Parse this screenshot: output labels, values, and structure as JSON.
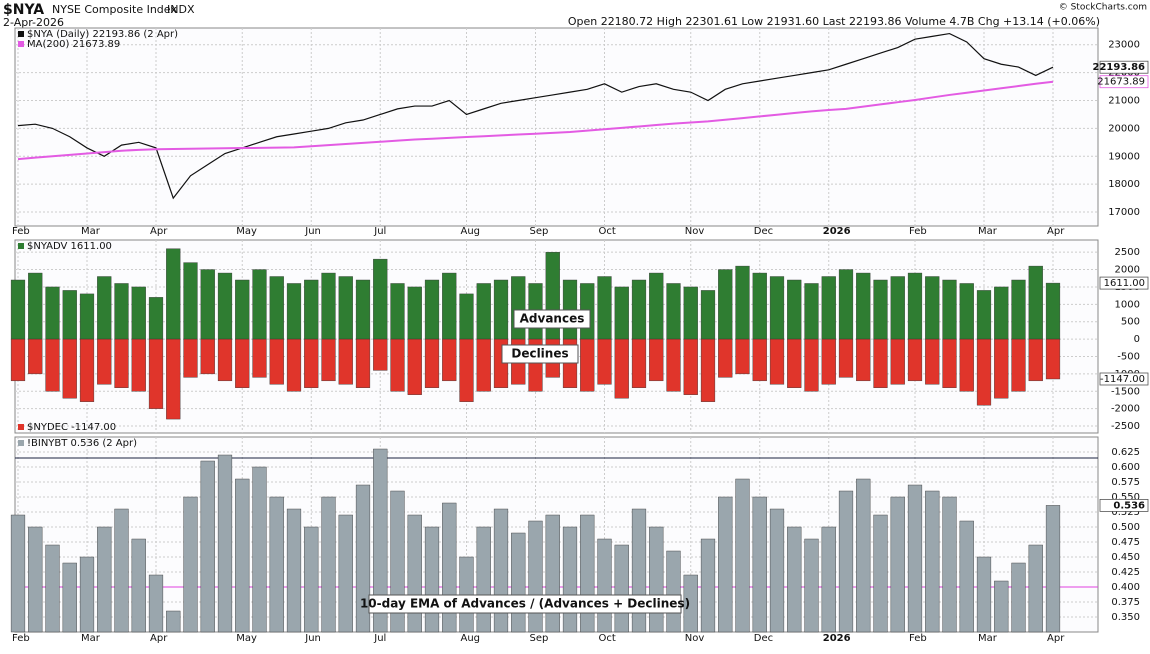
{
  "header": {
    "symbol": "$NYA",
    "name": "NYSE Composite Index",
    "exchange": "INDX",
    "date": "2-Apr-2026",
    "quote": "Open 22180.72  High 22301.61  Low 21931.60  Last 22193.86  Volume 4.7B  Chg +13.14 (+0.06%)",
    "credit": "© StockCharts.com"
  },
  "chart_data": {
    "type": "panels",
    "categories": [
      "Feb",
      null,
      null,
      null,
      "Mar",
      null,
      null,
      null,
      "Apr",
      null,
      null,
      null,
      null,
      "May",
      null,
      null,
      null,
      "Jun",
      null,
      null,
      null,
      "Jul",
      null,
      null,
      null,
      null,
      "Aug",
      null,
      null,
      null,
      "Sep",
      null,
      null,
      null,
      "Oct",
      null,
      null,
      null,
      null,
      "Nov",
      null,
      null,
      null,
      "Dec",
      null,
      null,
      null,
      "2026",
      null,
      null,
      null,
      null,
      "Feb",
      null,
      null,
      null,
      "Mar",
      null,
      null,
      null,
      "Apr"
    ],
    "panels": [
      {
        "type": "line",
        "ylim": [
          16500,
          23600
        ],
        "yticks": [
          17000,
          18000,
          19000,
          20000,
          21000,
          22000,
          23000
        ],
        "grid": true,
        "series": [
          {
            "name": "$NYA (Daily) 22193.86 (2 Apr)",
            "color": "#111111",
            "last_label": 22193.86,
            "values": [
              20100,
              20150,
              20000,
              19700,
              19300,
              19000,
              19400,
              19500,
              19300,
              17500,
              18300,
              18700,
              19100,
              19300,
              19500,
              19700,
              19800,
              19900,
              20000,
              20200,
              20300,
              20500,
              20700,
              20800,
              20800,
              21000,
              20500,
              20700,
              20900,
              21000,
              21100,
              21200,
              21300,
              21400,
              21600,
              21300,
              21500,
              21600,
              21400,
              21300,
              21000,
              21400,
              21600,
              21700,
              21800,
              21900,
              22000,
              22100,
              22300,
              22500,
              22700,
              22900,
              23200,
              23300,
              23400,
              23100,
              22500,
              22300,
              22200,
              21900,
              22193.86
            ]
          },
          {
            "name": "MA(200) 21673.89",
            "color": "#e35be3",
            "last_label": 21673.89,
            "values": [
              18900,
              18950,
              19000,
              19050,
              19100,
              19150,
              19200,
              19230,
              19250,
              19260,
              19270,
              19280,
              19290,
              19295,
              19300,
              19310,
              19320,
              19360,
              19400,
              19440,
              19480,
              19520,
              19560,
              19600,
              19630,
              19660,
              19690,
              19720,
              19750,
              19780,
              19810,
              19840,
              19870,
              19920,
              19970,
              20020,
              20070,
              20120,
              20170,
              20210,
              20250,
              20310,
              20370,
              20430,
              20490,
              20550,
              20610,
              20660,
              20700,
              20780,
              20860,
              20940,
              21020,
              21110,
              21200,
              21280,
              21360,
              21440,
              21520,
              21600,
              21673.89
            ]
          }
        ]
      },
      {
        "type": "bar",
        "ylim": [
          -2700,
          2850
        ],
        "yticks": [
          -2500,
          -2000,
          -1500,
          -1000,
          -500,
          0,
          500,
          1000,
          1500,
          2000,
          2500
        ],
        "grid": true,
        "annotations": [
          "Advances",
          "Declines"
        ],
        "series": [
          {
            "name": "$NYADV 1611.00",
            "color": "#2f7d32",
            "last_label": "1611.00",
            "values": [
              1700,
              1900,
              1500,
              1400,
              1300,
              1800,
              1600,
              1500,
              1200,
              2600,
              2200,
              2000,
              1900,
              1700,
              2000,
              1800,
              1600,
              1700,
              1900,
              1800,
              1700,
              2300,
              1600,
              1500,
              1700,
              1900,
              1300,
              1600,
              1700,
              1800,
              1600,
              2500,
              1700,
              1600,
              1800,
              1500,
              1700,
              1900,
              1600,
              1500,
              1400,
              2000,
              2100,
              1900,
              1800,
              1700,
              1600,
              1800,
              2000,
              1900,
              1700,
              1800,
              1900,
              1800,
              1700,
              1600,
              1400,
              1500,
              1700,
              2100,
              1611
            ]
          },
          {
            "name": "$NYDEC -1147.00",
            "color": "#e0352b",
            "last_label": "-1147.00",
            "values": [
              -1200,
              -1000,
              -1500,
              -1700,
              -1800,
              -1300,
              -1400,
              -1500,
              -2000,
              -2300,
              -1100,
              -1000,
              -1200,
              -1400,
              -1100,
              -1300,
              -1500,
              -1400,
              -1200,
              -1300,
              -1400,
              -900,
              -1500,
              -1600,
              -1400,
              -1200,
              -1800,
              -1500,
              -1400,
              -1300,
              -1500,
              -1100,
              -1400,
              -1500,
              -1300,
              -1700,
              -1400,
              -1200,
              -1500,
              -1600,
              -1800,
              -1100,
              -1000,
              -1200,
              -1300,
              -1400,
              -1500,
              -1300,
              -1100,
              -1200,
              -1400,
              -1300,
              -1200,
              -1300,
              -1400,
              -1500,
              -1900,
              -1700,
              -1500,
              -1200,
              -1147
            ]
          }
        ]
      },
      {
        "type": "bar",
        "ylim": [
          0.325,
          0.65
        ],
        "yticks": [
          {
            "value": 0.35,
            "label": "0.350"
          },
          0.375,
          {
            "value": 0.4,
            "label": "0.400"
          },
          0.425,
          {
            "value": 0.45,
            "label": "0.450"
          },
          0.475,
          {
            "value": 0.5,
            "label": "0.500"
          },
          0.525,
          {
            "value": 0.55,
            "label": "0.550"
          },
          0.575,
          {
            "value": 0.6,
            "label": "0.600"
          },
          0.625
        ],
        "grid": true,
        "annotations": [
          "10-day EMA of Advances / (Advances + Declines)"
        ],
        "threshold_lines": [
          {
            "value": 0.615,
            "color": "#1a2240"
          },
          {
            "value": 0.4,
            "color": "#e040e0"
          }
        ],
        "series": [
          {
            "name": "!BINYBT 0.536 (2 Apr)",
            "color": "#9aa6ad",
            "last_label": 0.536,
            "values": [
              0.52,
              0.5,
              0.47,
              0.44,
              0.45,
              0.5,
              0.53,
              0.48,
              0.42,
              0.36,
              0.55,
              0.61,
              0.62,
              0.58,
              0.6,
              0.55,
              0.53,
              0.5,
              0.55,
              0.52,
              0.57,
              0.63,
              0.56,
              0.52,
              0.5,
              0.54,
              0.45,
              0.5,
              0.53,
              0.49,
              0.51,
              0.52,
              0.5,
              0.52,
              0.48,
              0.47,
              0.53,
              0.5,
              0.46,
              0.42,
              0.48,
              0.55,
              0.58,
              0.55,
              0.53,
              0.5,
              0.48,
              0.5,
              0.56,
              0.58,
              0.52,
              0.55,
              0.57,
              0.56,
              0.55,
              0.51,
              0.45,
              0.41,
              0.44,
              0.47,
              0.536
            ]
          }
        ]
      }
    ]
  }
}
